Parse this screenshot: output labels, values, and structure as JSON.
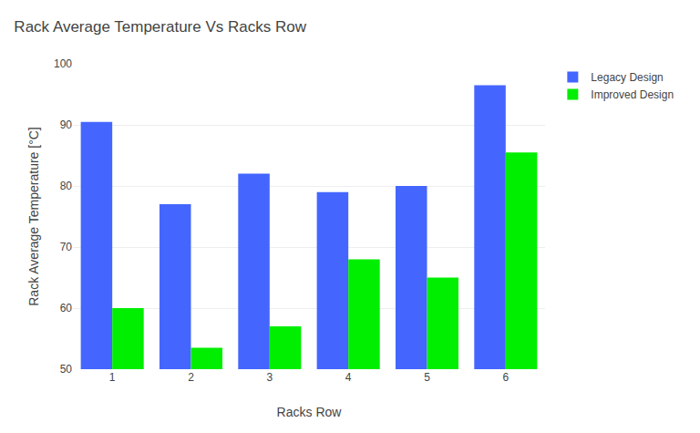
{
  "chart_data": {
    "type": "bar",
    "title": "Rack Average Temperature Vs Racks Row",
    "xlabel": "Racks Row",
    "ylabel": "Rack Average Temperature [°C]",
    "categories": [
      1,
      2,
      3,
      4,
      5,
      6
    ],
    "series": [
      {
        "name": "Legacy Design",
        "color": "#4466ff",
        "values": [
          90.5,
          77.0,
          82.0,
          79.0,
          80.0,
          96.5
        ]
      },
      {
        "name": "Improved Design",
        "color": "#00ee00",
        "values": [
          60.0,
          53.5,
          57.0,
          68.0,
          65.0,
          85.5
        ]
      }
    ],
    "ylim": [
      50,
      100
    ],
    "yticks": [
      50,
      60,
      70,
      80,
      90,
      100
    ],
    "grid": true,
    "legend": "upper right"
  }
}
